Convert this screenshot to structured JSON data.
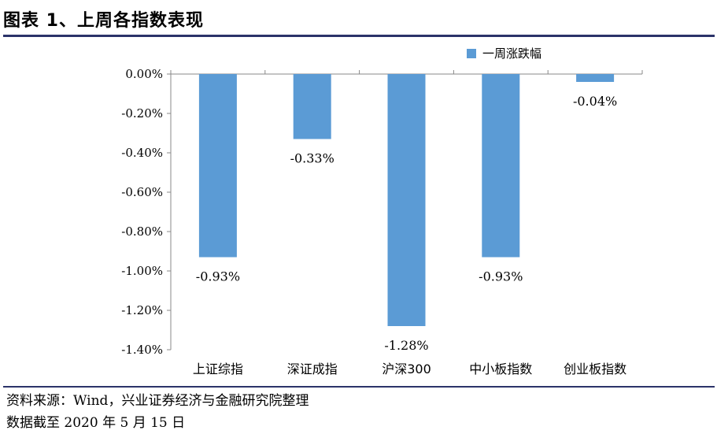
{
  "header": {
    "title": "图表 1、上周各指数表现"
  },
  "footer": {
    "source": "资料来源：Wind，兴业证券经济与金融研究院整理",
    "as_of": "数据截至 2020 年 5 月 15 日"
  },
  "chart_data": {
    "type": "bar",
    "title": "",
    "xlabel": "",
    "ylabel": "",
    "categories": [
      "上证综指",
      "深证成指",
      "沪深300",
      "中小板指数",
      "创业板指数"
    ],
    "series": [
      {
        "name": "一周涨跌幅",
        "values": [
          -0.93,
          -0.33,
          -1.28,
          -0.93,
          -0.04
        ]
      }
    ],
    "data_labels": [
      "-0.93%",
      "-0.33%",
      "-1.28%",
      "-0.93%",
      "-0.04%"
    ],
    "ylim": [
      -1.4,
      0
    ],
    "y_ticks": [
      0,
      -0.2,
      -0.4,
      -0.6,
      -0.8,
      -1.0,
      -1.2,
      -1.4
    ],
    "y_tick_labels": [
      "0.00%",
      "-0.20%",
      "-0.40%",
      "-0.60%",
      "-0.80%",
      "-1.00%",
      "-1.20%",
      "-1.40%"
    ],
    "legend_position": "top-right",
    "grid": false,
    "bar_color": "#5b9bd5"
  }
}
